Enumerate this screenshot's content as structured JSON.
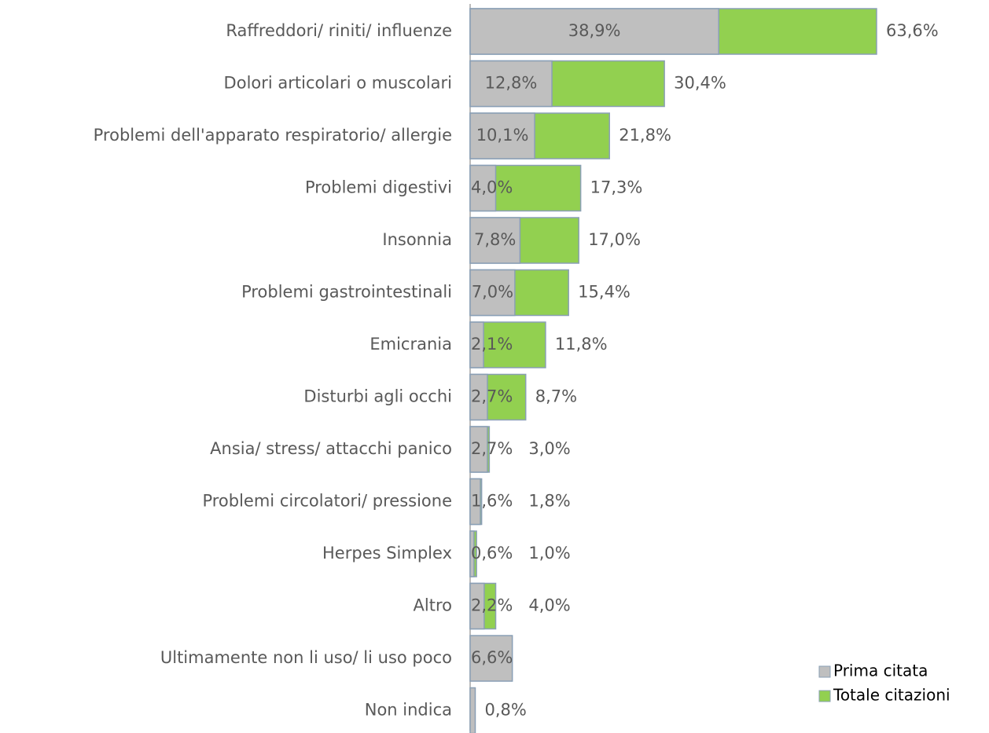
{
  "chart_data": {
    "type": "bar",
    "orientation": "horizontal",
    "categories": [
      "Raffreddori/ riniti/ influenze",
      "Dolori articolari o muscolari",
      "Problemi dell'apparato respiratorio/ allergie",
      "Problemi digestivi",
      "Insonnia",
      "Problemi gastrointestinali",
      "Emicrania",
      "Disturbi agli occhi",
      "Ansia/ stress/ attacchi panico",
      "Problemi circolatori/ pressione",
      "Herpes Simplex",
      "Altro",
      "Ultimamente non li uso/ li uso poco",
      "Non indica"
    ],
    "series": [
      {
        "name": "Prima citata",
        "color": "#bfbfbf",
        "values": [
          38.9,
          12.8,
          10.1,
          4.0,
          7.8,
          7.0,
          2.1,
          2.7,
          2.7,
          1.6,
          0.6,
          2.2,
          6.6,
          0.8
        ],
        "value_labels": [
          "38,9%",
          "12,8%",
          "10,1%",
          "4,0%",
          "7,8%",
          "7,0%",
          "2,1%",
          "2,7%",
          "2,7%",
          "1,6%",
          "0,6%",
          "2,2%",
          "6,6%",
          "0,8%"
        ]
      },
      {
        "name": "Totale citazioni",
        "color": "#92d050",
        "values": [
          63.6,
          30.4,
          21.8,
          17.3,
          17.0,
          15.4,
          11.8,
          8.7,
          3.0,
          1.8,
          1.0,
          4.0,
          null,
          null
        ],
        "value_labels": [
          "63,6%",
          "30,4%",
          "21,8%",
          "17,3%",
          "17,0%",
          "15,4%",
          "11,8%",
          "8,7%",
          "3,0%",
          "1,8%",
          "1,0%",
          "4,0%",
          null,
          null
        ]
      }
    ],
    "legend": "bottom-right"
  }
}
